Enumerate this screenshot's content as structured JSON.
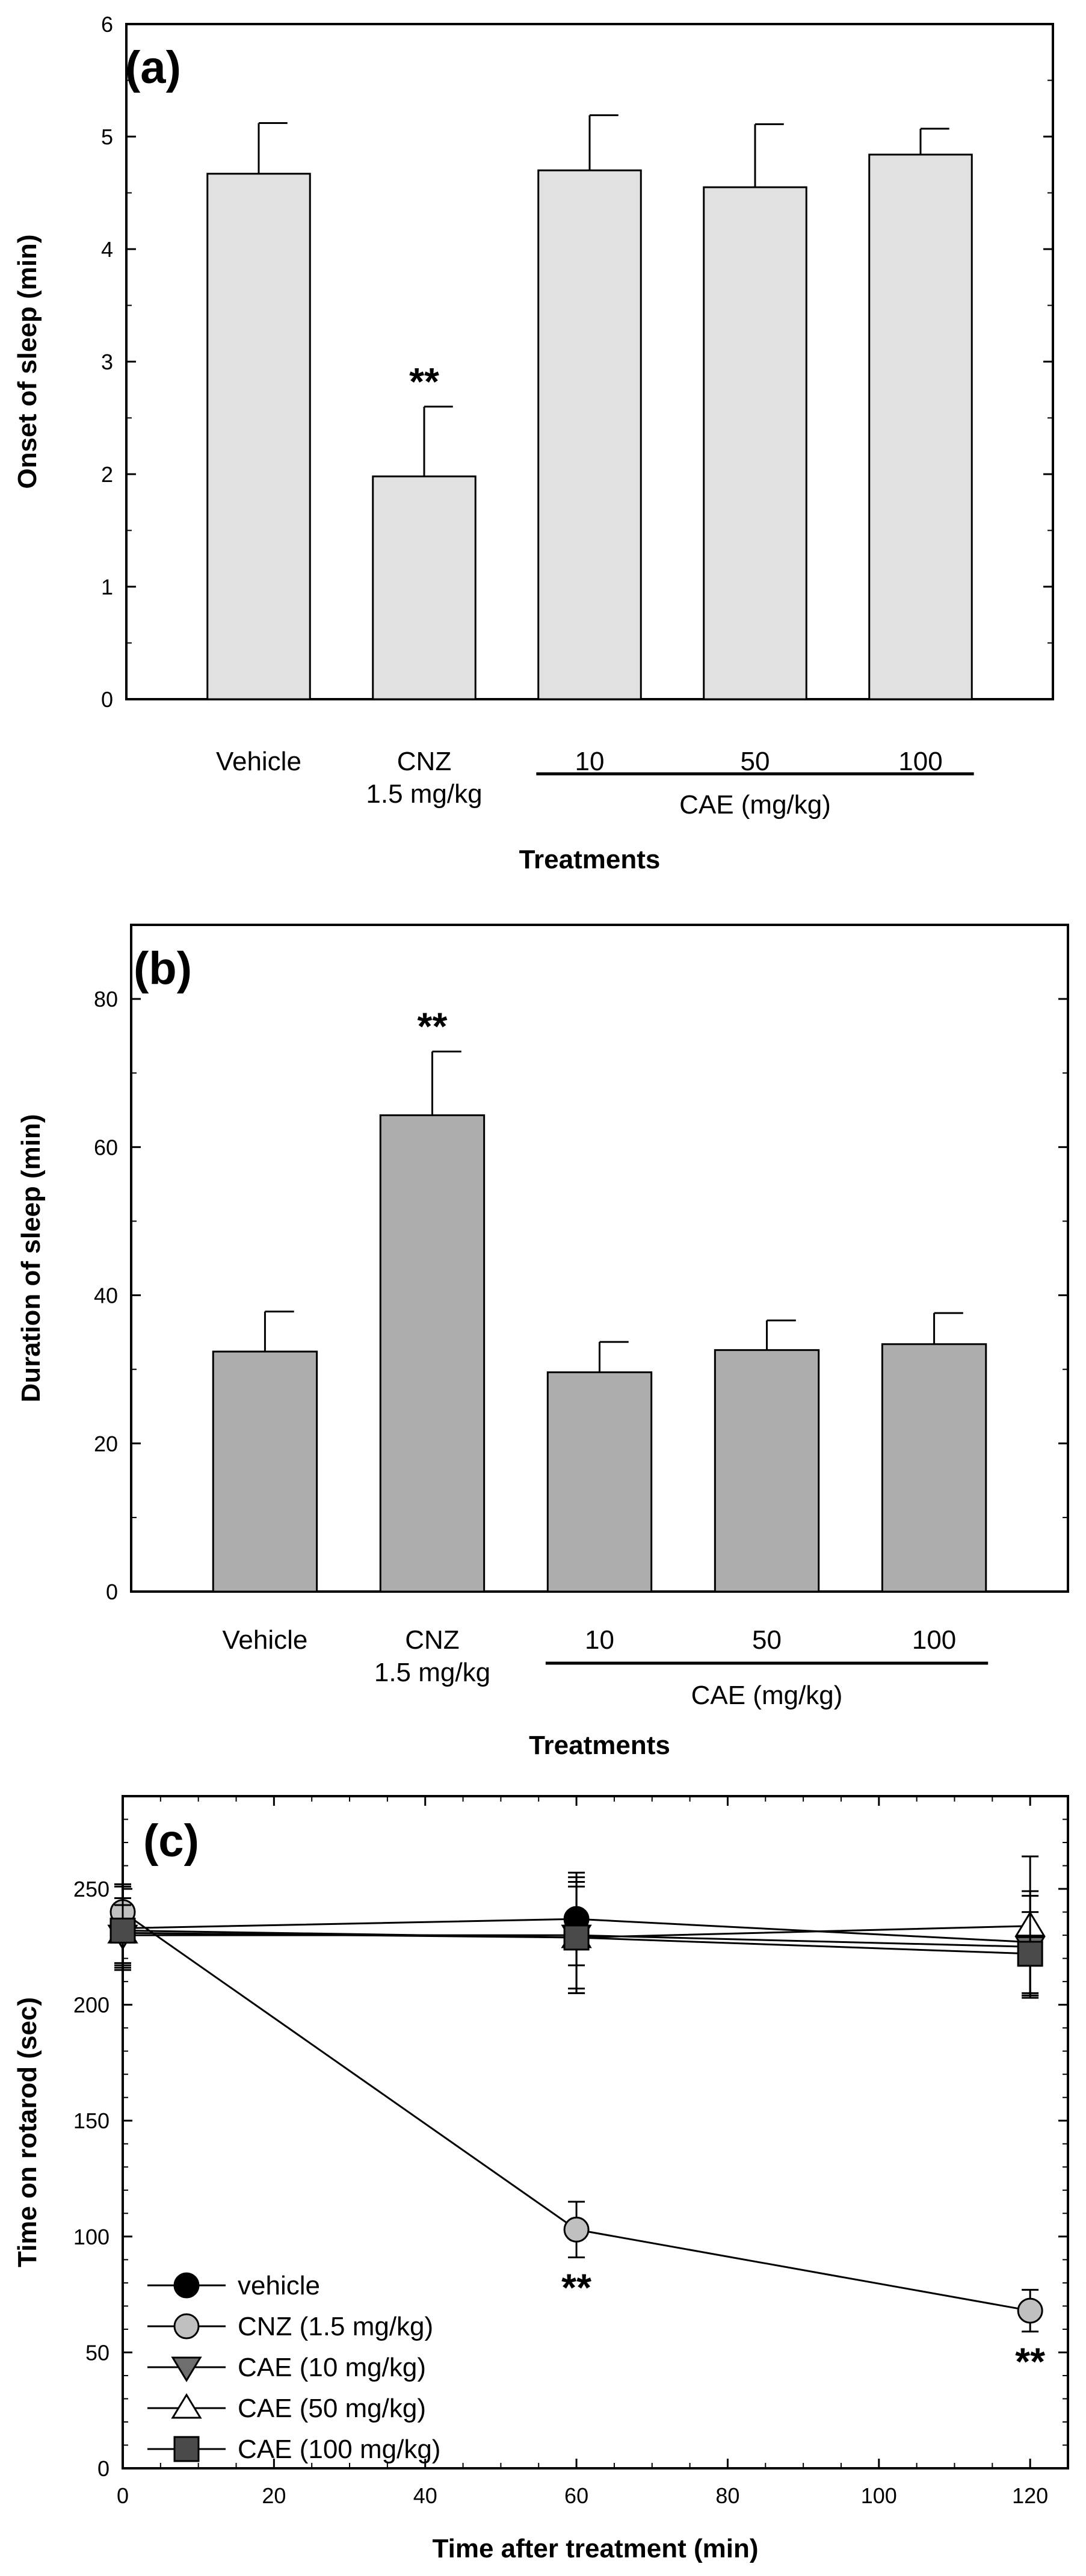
{
  "chart_data": [
    {
      "type": "bar",
      "panel_label": "(a)",
      "categories": [
        "Vehicle",
        "CNZ\n1.5 mg/kg",
        "10",
        "50",
        "100"
      ],
      "values": [
        4.67,
        1.98,
        4.7,
        4.55,
        4.84
      ],
      "errors": [
        0.45,
        0.62,
        0.49,
        0.56,
        0.23
      ],
      "significance": [
        "",
        "**",
        "",
        "",
        ""
      ],
      "group_label": "CAE (mg/kg)",
      "group_span": [
        2,
        4
      ],
      "xlabel": "Treatments",
      "ylabel": "Onset of sleep (min)",
      "ylim": [
        0,
        6
      ],
      "yticks": [
        0,
        1,
        2,
        3,
        4,
        5,
        6
      ],
      "bar_color": "#e1e1e1"
    },
    {
      "type": "bar",
      "panel_label": "(b)",
      "categories": [
        "Vehicle",
        "CNZ\n1.5 mg/kg",
        "10",
        "50",
        "100"
      ],
      "values": [
        32.4,
        64.3,
        29.6,
        32.6,
        33.4
      ],
      "errors": [
        5.4,
        8.6,
        4.1,
        4.0,
        4.2
      ],
      "significance": [
        "",
        "**",
        "",
        "",
        ""
      ],
      "group_label": "CAE (mg/kg)",
      "group_span": [
        2,
        4
      ],
      "xlabel": "Treatments",
      "ylabel": "Duration of sleep (min)",
      "ylim": [
        0,
        90
      ],
      "yticks": [
        0,
        20,
        40,
        60,
        80
      ],
      "bar_color": "#adadad"
    },
    {
      "type": "line",
      "panel_label": "(c)",
      "xlabel": "Time after treatment (min)",
      "ylabel": "Time on rotarod (sec)",
      "xlim": [
        0,
        125
      ],
      "ylim": [
        0,
        290
      ],
      "xticks": [
        0,
        20,
        40,
        60,
        80,
        100,
        120
      ],
      "yticks": [
        0,
        50,
        100,
        150,
        200,
        250
      ],
      "x": [
        0,
        60,
        120
      ],
      "series": [
        {
          "name": "vehicle",
          "marker": "circle",
          "fill": "#000000",
          "values": [
            233,
            237,
            227
          ],
          "errors": [
            18,
            20,
            22
          ],
          "significance": [
            "",
            "",
            ""
          ]
        },
        {
          "name": "CNZ (1.5 mg/kg)",
          "marker": "circle",
          "fill": "#c0c0c0",
          "values": [
            240,
            103,
            68
          ],
          "errors": [
            12,
            12,
            9
          ],
          "significance": [
            "",
            "**",
            "**"
          ]
        },
        {
          "name": "CAE (10 mg/kg)",
          "marker": "triangle-down",
          "fill": "#6e6e6e",
          "values": [
            230,
            230,
            225
          ],
          "errors": [
            13,
            25,
            22
          ],
          "significance": [
            "",
            "",
            ""
          ]
        },
        {
          "name": "CAE (50 mg/kg)",
          "marker": "triangle-up",
          "fill": "#ffffff",
          "values": [
            231,
            229,
            234
          ],
          "errors": [
            15,
            22,
            30
          ],
          "significance": [
            "",
            "",
            ""
          ]
        },
        {
          "name": "CAE (100 mg/kg)",
          "marker": "square",
          "fill": "#4a4a4a",
          "values": [
            232,
            229,
            222
          ],
          "errors": [
            14,
            24,
            18
          ],
          "significance": [
            "",
            "",
            ""
          ]
        }
      ],
      "legend": [
        "vehicle",
        "CNZ (1.5 mg/kg)",
        "CAE (10 mg/kg)",
        "CAE (50 mg/kg)",
        "CAE (100 mg/kg)"
      ],
      "legend_position": "bottom-left"
    }
  ]
}
